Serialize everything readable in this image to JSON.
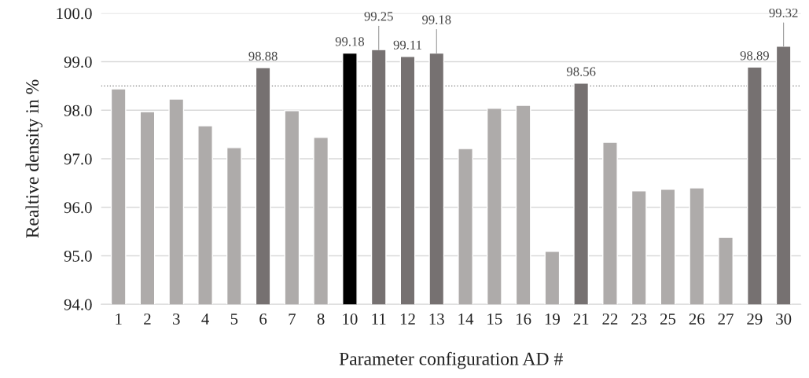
{
  "chart_data": {
    "type": "bar",
    "xlabel": "Parameter configuration AD #",
    "ylabel": "Realtive density in %",
    "categories": [
      "1",
      "2",
      "3",
      "4",
      "5",
      "6",
      "7",
      "8",
      "10",
      "11",
      "12",
      "13",
      "14",
      "15",
      "16",
      "19",
      "21",
      "22",
      "23",
      "25",
      "26",
      "27",
      "29",
      "30"
    ],
    "values": [
      98.44,
      97.97,
      98.23,
      97.68,
      97.23,
      98.88,
      97.99,
      97.44,
      99.18,
      99.25,
      99.11,
      99.18,
      97.21,
      98.04,
      98.1,
      95.09,
      98.56,
      97.34,
      96.34,
      96.37,
      96.4,
      95.38,
      98.89,
      99.32
    ],
    "colors": [
      "#aeabaa",
      "#aeabaa",
      "#aeabaa",
      "#aeabaa",
      "#aeabaa",
      "#767171",
      "#aeabaa",
      "#aeabaa",
      "#000000",
      "#767171",
      "#767171",
      "#767171",
      "#aeabaa",
      "#aeabaa",
      "#aeabaa",
      "#aeabaa",
      "#767171",
      "#aeabaa",
      "#aeabaa",
      "#aeabaa",
      "#aeabaa",
      "#aeabaa",
      "#767171",
      "#767171"
    ],
    "value_labels": [
      null,
      null,
      null,
      null,
      null,
      "98.88",
      null,
      null,
      "99.18",
      "99.25",
      "99.11",
      "99.18",
      null,
      null,
      null,
      null,
      "98.56",
      null,
      null,
      null,
      null,
      null,
      "98.89",
      "99.32"
    ],
    "ylim": [
      94.0,
      100.0
    ],
    "yticks": [
      {
        "value": 94,
        "label": "94.0"
      },
      {
        "value": 95,
        "label": "95.0"
      },
      {
        "value": 96,
        "label": "96.0"
      },
      {
        "value": 97,
        "label": "97.0"
      },
      {
        "value": 98,
        "label": "98.0"
      },
      {
        "value": 99,
        "label": "99.0"
      },
      {
        "value": 100,
        "label": "100.0"
      }
    ],
    "grid": "y",
    "ref_lines": [
      {
        "axis": "y",
        "value": 98.5,
        "color": "#808080",
        "line_style": "dotted"
      }
    ]
  }
}
